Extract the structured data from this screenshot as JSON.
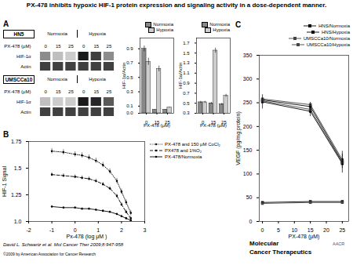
{
  "title": "PX-478 inhibits hypoxic HIF-1 protein expression and signaling activity in a dose-dependent manner.",
  "annotations": [
    "David L. Schwartz et al. Mol Cancer Ther 2009;8:947-958",
    "©2009 by American Association for Cancer Research",
    "Molecular",
    "Cancer Therapeutics",
    "AACR"
  ],
  "chart_data": [
    {
      "type": "blot",
      "panel": "A",
      "title": "HN5",
      "groups": [
        "Normoxia",
        "Hypoxia"
      ],
      "lane_label": "PX-478 (μM)",
      "categories": [
        0,
        15,
        25,
        0,
        15,
        25
      ],
      "rows": [
        {
          "name": "HIF-1α",
          "colors": [
            "#8c8c8c",
            "#bfbfbf",
            "#cccccc",
            "#1a1a1a",
            "#404040",
            "#8c8c8c"
          ]
        },
        {
          "name": "Actin",
          "colors": [
            "#404040",
            "#404040",
            "#404040",
            "#404040",
            "#404040",
            "#404040"
          ]
        }
      ]
    },
    {
      "type": "blot",
      "panel": "A",
      "title": "UMSCCa10",
      "groups": [
        "Normoxia",
        "Hypoxia"
      ],
      "lane_label": "PX-478 (μM)",
      "categories": [
        0,
        15,
        25,
        0,
        15,
        25
      ],
      "rows": [
        {
          "name": "HIF-1α",
          "colors": [
            "#bfbfbf",
            "#cccccc",
            "#cccccc",
            "#1a1a1a",
            "#262626",
            "#595959"
          ]
        },
        {
          "name": "Actin",
          "colors": [
            "#404040",
            "#404040",
            "#404040",
            "#404040",
            "#404040",
            "#404040"
          ]
        }
      ]
    },
    {
      "type": "bar",
      "panel": "A",
      "categories": [
        0,
        15,
        25
      ],
      "xlabel": "PX-478 (μM)",
      "ylabel": "HIF-1α/Actin",
      "ylim": [
        0,
        1.05
      ],
      "yticks": [
        {
          "value": 0,
          "label": "0.0"
        },
        0.1,
        0.3,
        0.5,
        0.7,
        0.9
      ],
      "legend": "upper right",
      "series": [
        {
          "name": "Normoxia",
          "color": "#888888",
          "values": [
            0.9,
            0.05,
            0.05
          ],
          "errors": [
            0.04,
            0.005,
            0.005
          ]
        },
        {
          "name": "Hypoxia",
          "color": "#cccccc",
          "values": [
            0.72,
            0.62,
            0.08
          ],
          "errors": [
            0.05,
            0.04,
            0.005
          ]
        }
      ]
    },
    {
      "type": "bar",
      "panel": "A",
      "categories": [
        0,
        15,
        25
      ],
      "xlabel": "PX-478 (μM)",
      "ylabel": "HIF-1α/Actin",
      "ylim": [
        0.3,
        1.8
      ],
      "yticks": [
        0.3,
        0.5,
        0.7,
        0.9,
        1.1,
        1.3,
        1.5,
        1.7
      ],
      "legend": "upper right",
      "series": [
        {
          "name": "Normoxia",
          "color": "#888888",
          "values": [
            0.52,
            0.5,
            0.48
          ],
          "errors": [
            0.02,
            0.02,
            0.02
          ]
        },
        {
          "name": "Hypoxia",
          "color": "#cccccc",
          "values": [
            0.52,
            1.55,
            0.65
          ],
          "errors": [
            0.02,
            0.05,
            0.03
          ]
        }
      ]
    },
    {
      "type": "line",
      "panel": "B",
      "xlabel": "Px-478 (log μM )",
      "ylabel": "HIF-1 Signal",
      "xlim": [
        -2,
        3
      ],
      "ylim": [
        1.0,
        1.75
      ],
      "xticks": [
        -2,
        -1,
        0,
        1,
        2,
        3
      ],
      "yticks": [
        {
          "value": 1.0,
          "label": "1.0"
        },
        1.25,
        {
          "value": 1.5,
          "label": "1.5"
        },
        1.75
      ],
      "legend": "upper right",
      "x": [
        -1,
        -0.5,
        0,
        0.3,
        0.6,
        0.9,
        1.2,
        1.5,
        1.8,
        2.0,
        2.2,
        2.4
      ],
      "series": [
        {
          "name": "PX-478 and 150 μM CoCl₂",
          "color": "#000000",
          "line_style": "dotted",
          "marker": "dot",
          "values": [
            1.66,
            1.65,
            1.63,
            1.62,
            1.6,
            1.57,
            1.53,
            1.47,
            1.38,
            1.28,
            1.18,
            1.08
          ],
          "errors": [
            0.025,
            0.025,
            0.025,
            0.025,
            0.025,
            0.025,
            0.025,
            0.025,
            0.025,
            0.025,
            0.025,
            0.025
          ]
        },
        {
          "name": "PX478 and 1%O₂",
          "color": "#000000",
          "line_style": "dashed",
          "marker": "dot",
          "values": [
            1.44,
            1.43,
            1.42,
            1.41,
            1.4,
            1.38,
            1.35,
            1.31,
            1.24,
            1.16,
            1.09,
            1.03
          ],
          "errors": [
            0.018,
            0.018,
            0.018,
            0.018,
            0.018,
            0.018,
            0.018,
            0.018,
            0.018,
            0.018,
            0.018,
            0.018
          ]
        },
        {
          "name": "PX-478/Normoxia",
          "color": "#000000",
          "line_style": "solid",
          "marker": "dot",
          "values": [
            1.14,
            1.13,
            1.13,
            1.12,
            1.12,
            1.11,
            1.1,
            1.09,
            1.07,
            1.05,
            1.03,
            1.01
          ],
          "errors": [
            0.01,
            0.01,
            0.01,
            0.01,
            0.01,
            0.01,
            0.01,
            0.01,
            0.01,
            0.01,
            0.01,
            0.01
          ]
        }
      ]
    },
    {
      "type": "line",
      "panel": "C",
      "xlabel": "PX-478 (μM)",
      "ylabel": "VEGF (pg/mg protein)",
      "xlim": [
        -1,
        27
      ],
      "ylim": [
        0,
        350
      ],
      "xticks": [
        0,
        5,
        10,
        15,
        20,
        25
      ],
      "yticks": [
        0,
        50,
        100,
        150,
        200,
        250,
        300,
        350
      ],
      "legend": "upper right",
      "x": [
        0,
        15,
        25
      ],
      "series": [
        {
          "name": "HNS/Normoxia",
          "color": "#000000",
          "line_style": "solid",
          "marker": "square",
          "values": [
            252,
            232,
            122
          ]
        },
        {
          "name": "HNS/Hypoxia",
          "color": "#000000",
          "line_style": "solid",
          "marker": "square",
          "values": [
            256,
            242,
            126
          ]
        },
        {
          "name": "UMSCCa10/Normoxia",
          "color": "#444444",
          "line_style": "solid",
          "marker": "square",
          "values": [
            254,
            236,
            124
          ]
        },
        {
          "name": "UMSCCa10/Hypoxia",
          "color": "#444444",
          "line_style": "solid",
          "marker": "square",
          "values": [
            258,
            246,
            130
          ]
        },
        {
          "color": "#000000",
          "line_style": "solid",
          "marker": "square",
          "values": [
            40,
            42,
            42
          ]
        },
        {
          "color": "#444444",
          "line_style": "solid",
          "marker": "square",
          "values": [
            38,
            40,
            40
          ]
        }
      ],
      "error_bars": [
        {
          "x": 25,
          "y": 122,
          "error": 20
        },
        {
          "x": 25,
          "y": 130,
          "error": 18
        },
        {
          "x": 0,
          "y": 252,
          "error": 15
        },
        {
          "x": 15,
          "y": 236,
          "error": 15
        }
      ]
    }
  ]
}
